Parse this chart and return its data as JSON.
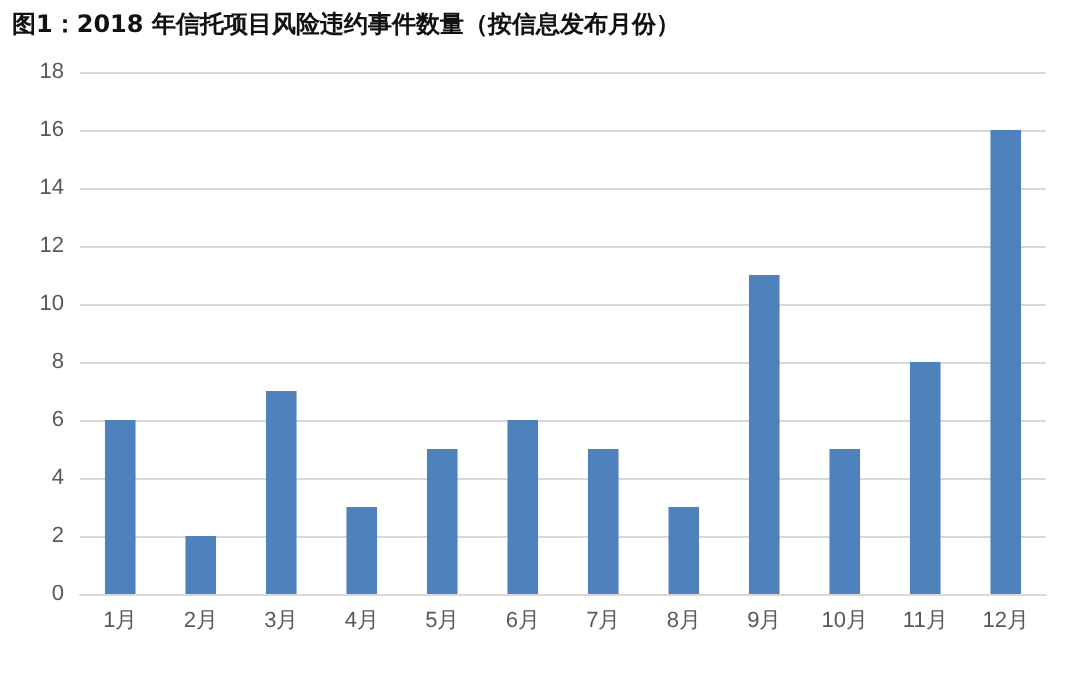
{
  "chart_data": {
    "type": "bar",
    "title": "图1：2018 年信托项目风险违约事件数量（按信息发布月份）",
    "categories": [
      "1月",
      "2月",
      "3月",
      "4月",
      "5月",
      "6月",
      "7月",
      "8月",
      "9月",
      "10月",
      "11月",
      "12月"
    ],
    "values": [
      6,
      2,
      7,
      3,
      5,
      6,
      5,
      3,
      11,
      5,
      8,
      16
    ],
    "color": "#4f81bd",
    "ylim": [
      0,
      18
    ],
    "yticks": [
      0,
      2,
      4,
      6,
      8,
      10,
      12,
      14,
      16,
      18
    ],
    "grid": "y"
  }
}
